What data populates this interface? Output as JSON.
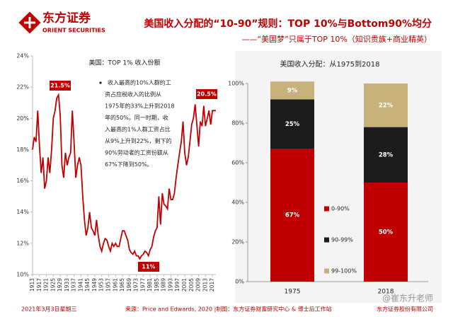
{
  "header": {
    "logo_cn": "东方证券",
    "logo_en": "ORIENT SECURITIES",
    "title": "美国收入分配的“10-90”规则：TOP 10%与Bottom90%均分",
    "subtitle": "——“美国梦”只属于TOP 10%（知识贵族+商业精英）"
  },
  "chart_data": [
    {
      "type": "line",
      "title": "美国：TOP 1% 收入份额",
      "color": "#c00000",
      "x": [
        1913,
        1914,
        1915,
        1916,
        1917,
        1918,
        1919,
        1920,
        1921,
        1922,
        1923,
        1924,
        1925,
        1926,
        1927,
        1928,
        1929,
        1930,
        1931,
        1932,
        1933,
        1934,
        1935,
        1936,
        1937,
        1938,
        1939,
        1940,
        1941,
        1942,
        1943,
        1944,
        1945,
        1946,
        1947,
        1948,
        1949,
        1950,
        1951,
        1952,
        1953,
        1954,
        1955,
        1956,
        1957,
        1958,
        1959,
        1960,
        1961,
        1962,
        1963,
        1964,
        1965,
        1966,
        1967,
        1968,
        1969,
        1970,
        1971,
        1972,
        1973,
        1974,
        1975,
        1976,
        1977,
        1978,
        1979,
        1980,
        1981,
        1982,
        1983,
        1984,
        1985,
        1986,
        1987,
        1988,
        1989,
        1990,
        1991,
        1992,
        1993,
        1994,
        1995,
        1996,
        1997,
        1998,
        1999,
        2000,
        2001,
        2002,
        2003,
        2004,
        2005,
        2006,
        2007,
        2008,
        2009,
        2010,
        2011,
        2012,
        2013,
        2014,
        2015,
        2016,
        2017,
        2018,
        2019
      ],
      "values": [
        18,
        18.8,
        18.5,
        20.5,
        18.2,
        16.5,
        17.5,
        15.5,
        16,
        17.5,
        16.5,
        18,
        20,
        20.5,
        21.3,
        21.5,
        20.2,
        17,
        16.2,
        17.8,
        17,
        17.5,
        17.8,
        20.5,
        18.5,
        16.2,
        17,
        17.5,
        17,
        15,
        13.5,
        12.5,
        13,
        14,
        13,
        12.8,
        12.5,
        13.5,
        12.5,
        11.8,
        11.5,
        12,
        12.3,
        12.2,
        11.8,
        11.5,
        12,
        11.8,
        12,
        11.8,
        11.8,
        12.3,
        12.8,
        12.8,
        12.5,
        12.2,
        11.6,
        11.4,
        11.3,
        11.5,
        11.2,
        11.2,
        11,
        11.2,
        11.3,
        11.5,
        11.4,
        11.2,
        11.6,
        11.8,
        12.4,
        12.8,
        13,
        15,
        13.2,
        15.2,
        14.5,
        14.4,
        14.2,
        15.5,
        14.8,
        14.8,
        15.2,
        16.2,
        17,
        17.8,
        18.5,
        19.8,
        17.8,
        17,
        17.5,
        18.5,
        19.6,
        20,
        20.9,
        19.6,
        18.2,
        19.8,
        19.5,
        20.8,
        19.5,
        20,
        20.5,
        19.6,
        20.5,
        20.5,
        20.5
      ],
      "xlim": [
        1913,
        2019
      ],
      "xticks": [
        1913,
        1917,
        1921,
        1925,
        1929,
        1933,
        1937,
        1941,
        1945,
        1949,
        1953,
        1957,
        1961,
        1965,
        1969,
        1973,
        1977,
        1981,
        1985,
        1989,
        1993,
        1997,
        2001,
        2005,
        2009,
        2013,
        2017
      ],
      "ylim": [
        10,
        24
      ],
      "yticks": [
        {
          "value": 10,
          "label": "10%"
        },
        {
          "value": 12,
          "label": "12%"
        },
        {
          "value": 14,
          "label": "14%"
        },
        {
          "value": 16,
          "label": "16%"
        },
        {
          "value": 18,
          "label": "18%"
        },
        {
          "value": 20,
          "label": "20%"
        },
        {
          "value": 22,
          "label": "22%"
        },
        {
          "value": 24,
          "label": "24%"
        }
      ],
      "annotations": [
        "21.5%",
        "11%",
        "20.5%"
      ],
      "note_lines": [
        "收入最高的10%人群的工",
        "资占应税收入的比例从",
        "1975年的33%上升到2018",
        "年的50%。同一时期，收",
        "入最高的1%人群工资占比",
        "从9%上升到22%，剩下的",
        "90%劳动者的工资份额从",
        "67%下降到50%。"
      ]
    },
    {
      "type": "stacked_bar",
      "title": "美国收入分配：从1975到2018",
      "categories": [
        "1975",
        "2018"
      ],
      "series": [
        {
          "name": "0-90%",
          "color": "#c00000",
          "values": [
            67,
            50
          ],
          "value_labels": [
            "67%",
            "50%"
          ]
        },
        {
          "name": "90-99%",
          "color": "#1c1c1c",
          "values": [
            25,
            28
          ],
          "value_labels": [
            "25%",
            "28%"
          ]
        },
        {
          "name": "99-100%",
          "color": "#c8b27c",
          "values": [
            9,
            22
          ],
          "value_labels": [
            "9%",
            "22%"
          ]
        }
      ],
      "ylim": [
        0,
        100
      ],
      "yticks": [
        {
          "value": 0,
          "label": "0%"
        },
        {
          "value": 20,
          "label": "20%"
        },
        {
          "value": 40,
          "label": "40%"
        },
        {
          "value": 60,
          "label": "60%"
        },
        {
          "value": 80,
          "label": "80%"
        },
        {
          "value": 100,
          "label": "100%"
        }
      ]
    }
  ],
  "footer": {
    "date": "2021年3月3日星期三",
    "source": "来源：Price and Edwards, 2020 |制图：东方证券财富研究中心 & 博士后工作站",
    "company": "东方证券股份有限公司",
    "watermark": "@崔东升老师"
  }
}
